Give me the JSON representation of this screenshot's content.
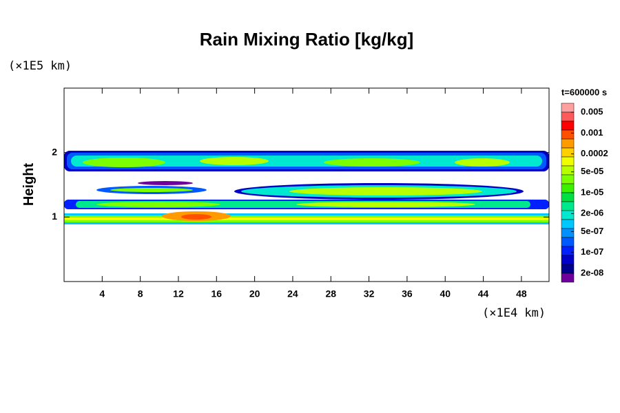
{
  "chart_data": {
    "type": "contour",
    "title": "Rain Mixing Ratio [kg/kg]",
    "y_label": "Height",
    "y_unit": "(×1E5 km)",
    "x_unit": "(×1E4 km)",
    "xlim": [
      0,
      50.9
    ],
    "ylim": [
      0,
      3
    ],
    "xticks": [
      4,
      8,
      12,
      16,
      20,
      24,
      28,
      32,
      36,
      40,
      44,
      48
    ],
    "yticks": [
      1,
      2
    ],
    "colorbar": {
      "title": "t=600000 s",
      "scale": "log",
      "lim": [
        1e-08,
        0.01
      ],
      "colors": [
        "#ff9f9f",
        "#ff5a5a",
        "#ff0000",
        "#ff5000",
        "#ff9a00",
        "#ffd000",
        "#f0ff00",
        "#b8ff00",
        "#7cff00",
        "#3cf000",
        "#00e040",
        "#00e88c",
        "#00e8d0",
        "#00c8ff",
        "#0090ff",
        "#0058ff",
        "#0020ff",
        "#0000c8",
        "#000090",
        "#70009c"
      ],
      "ticks": [
        0.005,
        0.001,
        0.0002,
        {
          "value": 5e-05,
          "label": "5e-05"
        },
        {
          "value": 1e-05,
          "label": "1e-05"
        },
        {
          "value": 2e-06,
          "label": "2e-06"
        },
        {
          "value": 5e-07,
          "label": "5e-07"
        },
        {
          "value": 1e-07,
          "label": "1e-07"
        },
        {
          "value": 2e-08,
          "label": "2e-08"
        }
      ]
    }
  }
}
